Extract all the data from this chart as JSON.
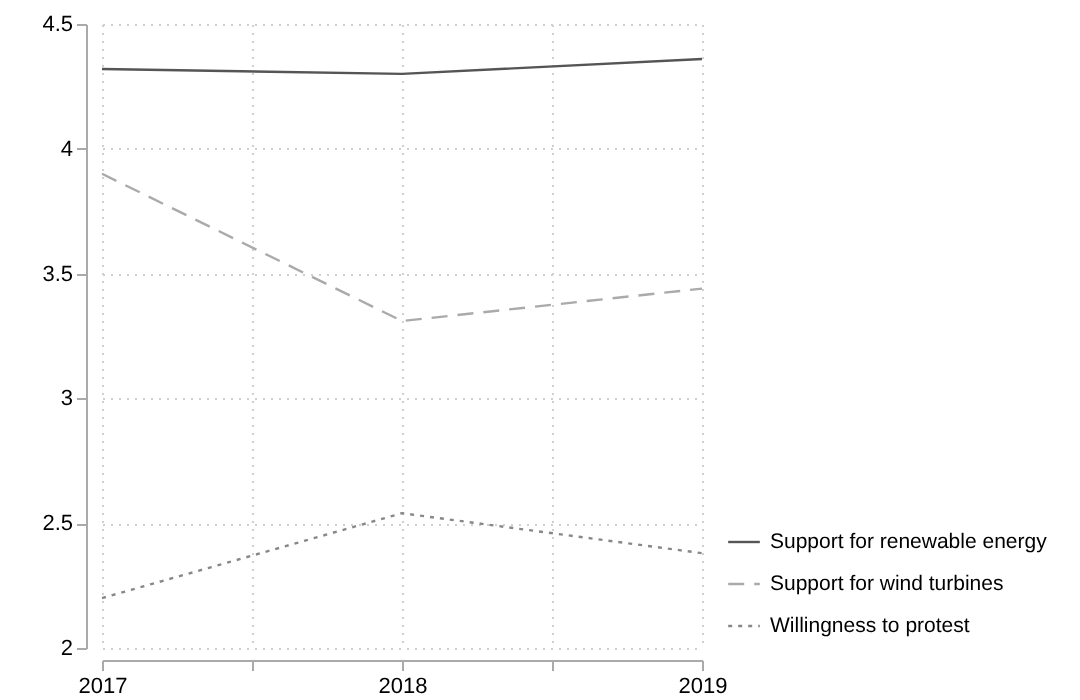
{
  "chart_data": {
    "type": "line",
    "x": [
      2017,
      2018,
      2019
    ],
    "xlim": [
      2017,
      2019
    ],
    "xticks": [
      2017,
      {
        "value": 2017.5,
        "label": null
      },
      2018,
      {
        "value": 2018.5,
        "label": null
      },
      2019
    ],
    "ylim": [
      2,
      4.5
    ],
    "yticks": [
      2,
      2.5,
      3,
      3.5,
      4,
      4.5
    ],
    "grid": true,
    "legend": "bottom right",
    "marker": "none",
    "series": [
      {
        "name": "Support for renewable energy",
        "color": "#555555",
        "line_style": "solid",
        "values": [
          4.32,
          4.3,
          4.36
        ]
      },
      {
        "name": "Support for wind turbines",
        "color": "#aaaaaa",
        "line_style": "dashed",
        "values": [
          3.9,
          3.31,
          3.44
        ]
      },
      {
        "name": "Willingness to protest",
        "color": "#888888",
        "line_style": "dotted",
        "values": [
          2.2,
          2.54,
          2.38
        ]
      }
    ]
  }
}
